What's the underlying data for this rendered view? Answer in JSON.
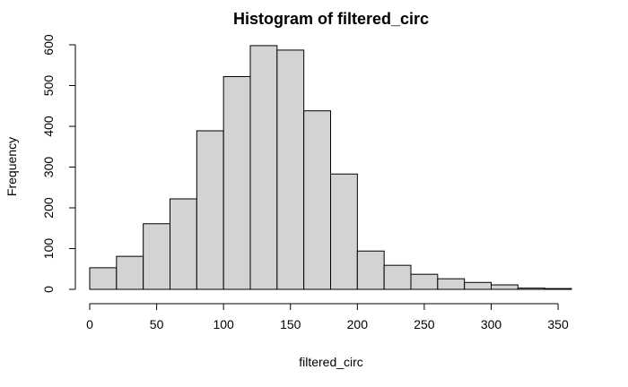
{
  "chart_data": {
    "type": "bar",
    "title": "Histogram of filtered_circ",
    "xlabel": "filtered_circ",
    "ylabel": "Frequency",
    "bins": [
      {
        "start": 0,
        "end": 20,
        "count": 53
      },
      {
        "start": 20,
        "end": 40,
        "count": 81
      },
      {
        "start": 40,
        "end": 60,
        "count": 161
      },
      {
        "start": 60,
        "end": 80,
        "count": 222
      },
      {
        "start": 80,
        "end": 100,
        "count": 389
      },
      {
        "start": 100,
        "end": 120,
        "count": 522
      },
      {
        "start": 120,
        "end": 140,
        "count": 598
      },
      {
        "start": 140,
        "end": 160,
        "count": 587
      },
      {
        "start": 160,
        "end": 180,
        "count": 438
      },
      {
        "start": 180,
        "end": 200,
        "count": 283
      },
      {
        "start": 200,
        "end": 220,
        "count": 94
      },
      {
        "start": 220,
        "end": 240,
        "count": 59
      },
      {
        "start": 240,
        "end": 260,
        "count": 37
      },
      {
        "start": 260,
        "end": 280,
        "count": 26
      },
      {
        "start": 280,
        "end": 300,
        "count": 17
      },
      {
        "start": 300,
        "end": 320,
        "count": 11
      },
      {
        "start": 320,
        "end": 340,
        "count": 3
      },
      {
        "start": 340,
        "end": 360,
        "count": 2
      }
    ],
    "xticks": [
      0,
      50,
      100,
      150,
      200,
      250,
      300,
      350
    ],
    "yticks": [
      0,
      100,
      200,
      300,
      400,
      500,
      600
    ],
    "xlim": [
      0,
      360
    ],
    "ylim": [
      0,
      600
    ],
    "grid": false,
    "bar_color": "#d3d3d3",
    "edge_color": "#000000"
  }
}
